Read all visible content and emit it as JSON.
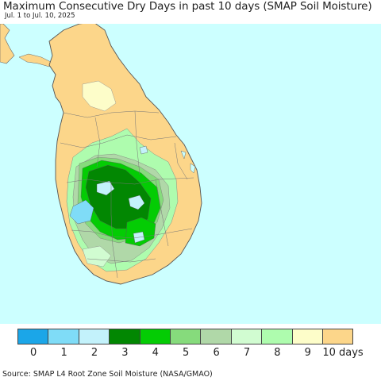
{
  "title": "Maximum Consecutive Dry Days in past 10 days (SMAP Soil Moisture)",
  "subtitle": "Jul. 1 to Jul. 10, 2025",
  "colors": {
    "ocean": "#ccffff",
    "land_default": "#fcd68a",
    "border": "#444444"
  },
  "legend": {
    "items": [
      {
        "label": "0",
        "color": "#1ba6e8"
      },
      {
        "label": "1",
        "color": "#7fdcf7"
      },
      {
        "label": "2",
        "color": "#c3f2fb"
      },
      {
        "label": "3",
        "color": "#028702"
      },
      {
        "label": "4",
        "color": "#04cc04"
      },
      {
        "label": "5",
        "color": "#86db7c"
      },
      {
        "label": "6",
        "color": "#b0d8a8"
      },
      {
        "label": "7",
        "color": "#d1fcd1"
      },
      {
        "label": "8",
        "color": "#aefcae"
      },
      {
        "label": "9",
        "color": "#fdfdc9"
      },
      {
        "label": "10 days",
        "color": "#fcd68a"
      }
    ]
  },
  "source": "Source: SMAP L4 Root Zone Soil Moisture (NASA/GMAO)"
}
